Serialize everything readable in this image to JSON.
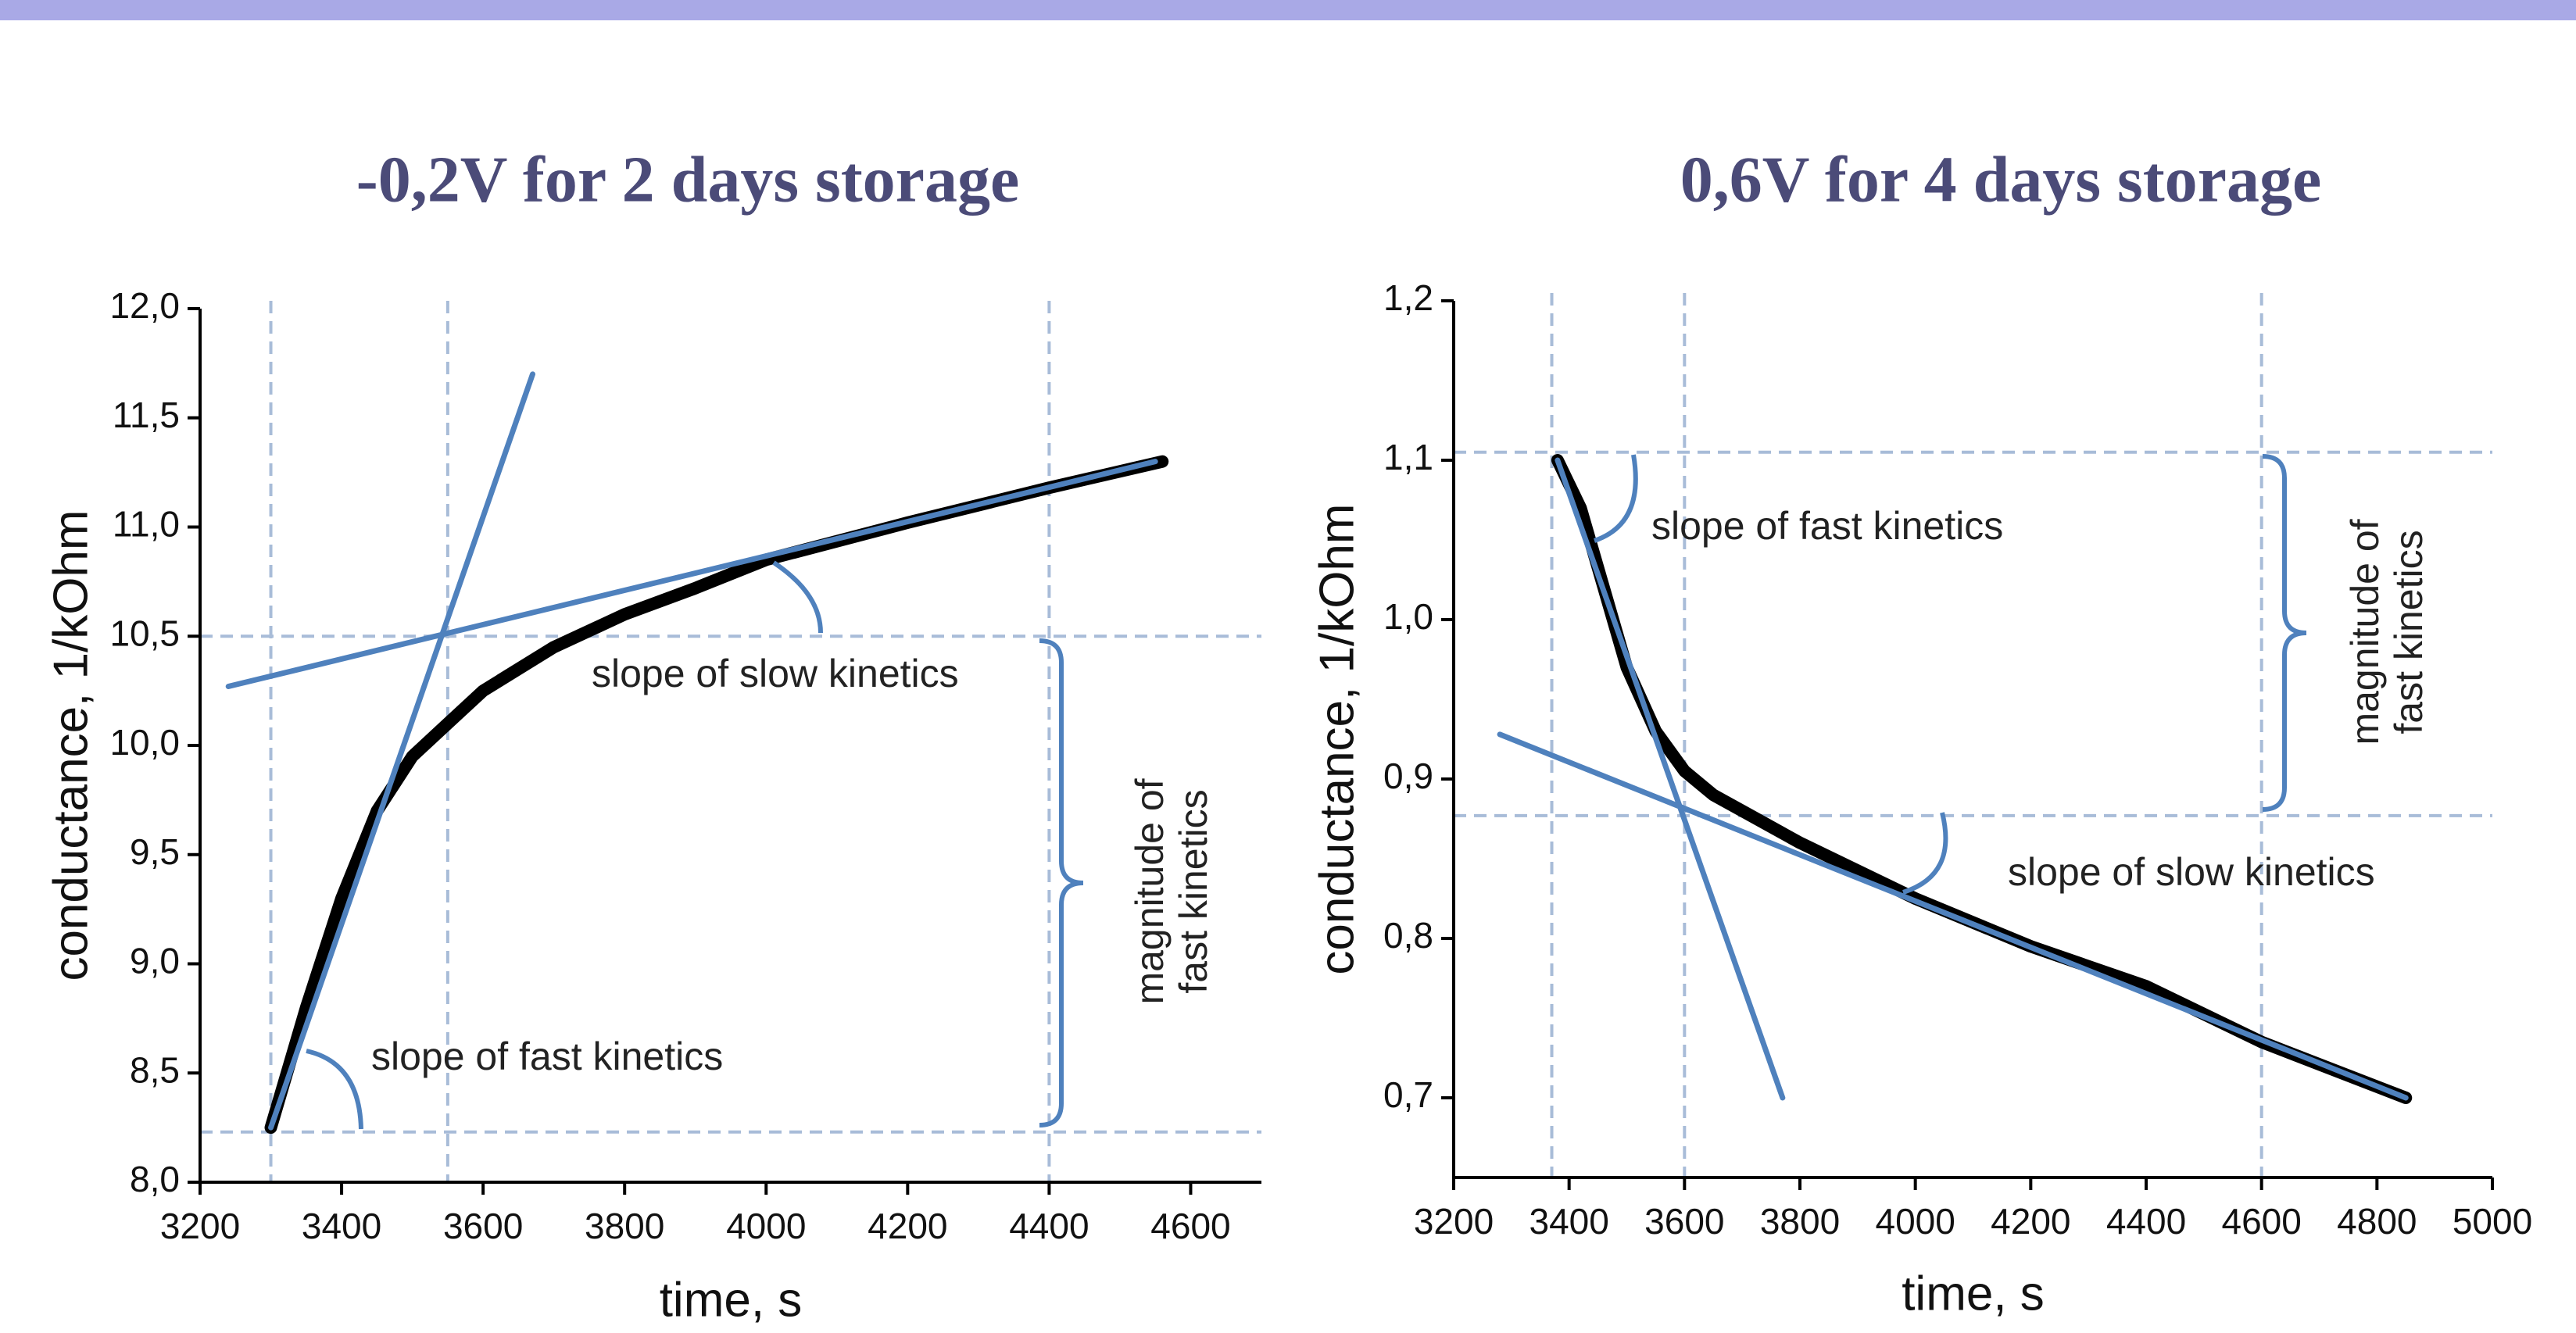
{
  "chart_data": [
    {
      "type": "line",
      "title": "-0,2V for 2 days storage",
      "xlabel": "time, s",
      "ylabel": "conductance,  1/kOhm",
      "xlim": [
        3200,
        4700
      ],
      "ylim": [
        8.0,
        12.0
      ],
      "xticks": [
        3200,
        3400,
        3600,
        3800,
        4000,
        4200,
        4400,
        4600
      ],
      "yticks": [
        {
          "value": 8.0,
          "label": "8,0"
        },
        {
          "value": 8.5,
          "label": "8,5"
        },
        {
          "value": 9.0,
          "label": "9,0"
        },
        {
          "value": 9.5,
          "label": "9,5"
        },
        {
          "value": 10.0,
          "label": "10,0"
        },
        {
          "value": 10.5,
          "label": "10,5"
        },
        {
          "value": 11.0,
          "label": "11,0"
        },
        {
          "value": 11.5,
          "label": "11,5"
        },
        {
          "value": 12.0,
          "label": "12,0"
        }
      ],
      "series": [
        {
          "color": "#000000",
          "x": [
            3300,
            3350,
            3400,
            3450,
            3500,
            3550,
            3600,
            3700,
            3800,
            3900,
            4000,
            4200,
            4400,
            4560
          ],
          "values": [
            8.25,
            8.8,
            9.3,
            9.7,
            9.95,
            10.1,
            10.25,
            10.45,
            10.6,
            10.72,
            10.85,
            11.02,
            11.18,
            11.3
          ]
        },
        {
          "color": "#4f81bd",
          "x": [
            3300,
            3670
          ],
          "values": [
            8.25,
            11.7
          ]
        },
        {
          "color": "#4f81bd",
          "x": [
            3240,
            4550
          ],
          "values": [
            10.27,
            11.3
          ]
        }
      ],
      "vlines": [
        3300,
        3550,
        4400
      ],
      "hlines": [
        10.5,
        8.23
      ],
      "guide_color": "#a8bcd8",
      "annotations": [
        "slope of slow kinetics",
        "slope of fast kinetics",
        [
          "magnitude of",
          "fast kinetics"
        ]
      ]
    },
    {
      "type": "line",
      "title": "0,6V for 4 days storage",
      "xlabel": "time, s",
      "ylabel": "conductance,  1/kOhm",
      "xlim": [
        3200,
        5000
      ],
      "ylim": [
        0.65,
        1.2
      ],
      "xticks": [
        3200,
        3400,
        3600,
        3800,
        4000,
        4200,
        4400,
        4600,
        4800,
        5000
      ],
      "yticks": [
        {
          "value": 0.7,
          "label": "0,7"
        },
        {
          "value": 0.8,
          "label": "0,8"
        },
        {
          "value": 0.9,
          "label": "0,9"
        },
        {
          "value": 1.0,
          "label": "1,0"
        },
        {
          "value": 1.1,
          "label": "1,1"
        },
        {
          "value": 1.2,
          "label": "1,2"
        }
      ],
      "series": [
        {
          "color": "#000000",
          "x": [
            3380,
            3420,
            3460,
            3500,
            3550,
            3600,
            3650,
            3700,
            3800,
            4000,
            4200,
            4400,
            4600,
            4850
          ],
          "values": [
            1.1,
            1.07,
            1.02,
            0.97,
            0.93,
            0.905,
            0.89,
            0.88,
            0.86,
            0.825,
            0.795,
            0.77,
            0.735,
            0.7
          ]
        },
        {
          "color": "#4f81bd",
          "x": [
            3380,
            3770
          ],
          "values": [
            1.1,
            0.7
          ]
        },
        {
          "color": "#4f81bd",
          "x": [
            3280,
            4850
          ],
          "values": [
            0.928,
            0.7
          ]
        }
      ],
      "vlines": [
        3370,
        3600,
        4600
      ],
      "hlines": [
        1.105,
        0.877
      ],
      "guide_color": "#a8bcd8",
      "annotations": [
        "slope of fast kinetics",
        "slope of slow kinetics",
        [
          "magnitude of",
          "fast kinetics"
        ]
      ]
    }
  ]
}
